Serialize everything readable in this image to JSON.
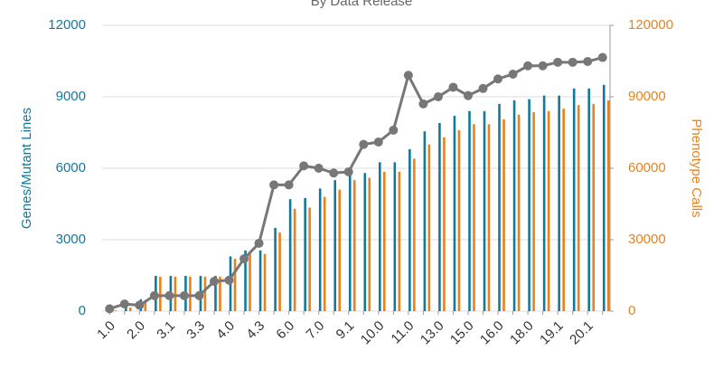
{
  "chart_data": {
    "type": "bar",
    "title": "By Data Release",
    "ylabel": "Genes/Mutant Lines",
    "y2label": "Phenotype Calls",
    "categories": [
      "1.0",
      null,
      "2.0",
      null,
      "3.1",
      null,
      "3.3",
      null,
      "4.0",
      null,
      "4.3",
      null,
      "6.0",
      null,
      "7.0",
      null,
      "9.1",
      null,
      "10.0",
      null,
      "11.0",
      null,
      "13.0",
      null,
      "15.0",
      null,
      "16.0",
      null,
      "18.0",
      null,
      "19.1",
      null,
      "20.1",
      null
    ],
    "series": [
      {
        "color": "#11799b",
        "values": [
          50,
          200,
          500,
          1480,
          1480,
          1480,
          1480,
          1480,
          2300,
          2550,
          2550,
          3500,
          4700,
          4750,
          5150,
          5500,
          5700,
          5800,
          6250,
          6250,
          6800,
          7550,
          7900,
          8200,
          8400,
          8400,
          8700,
          8850,
          8900,
          9050,
          9050,
          9350,
          9350,
          9500
        ]
      },
      {
        "color": "#e8821e",
        "values": [
          30,
          150,
          450,
          1450,
          1450,
          1450,
          1450,
          1450,
          2200,
          2400,
          2400,
          3300,
          4300,
          4350,
          4800,
          5100,
          5500,
          5600,
          5850,
          5850,
          6400,
          7000,
          7300,
          7600,
          7850,
          7850,
          8050,
          8250,
          8350,
          8400,
          8500,
          8650,
          8700,
          8850
        ]
      },
      {
        "color": "#777777",
        "axis": "y2",
        "kind": "line",
        "values": [
          1000,
          3000,
          2500,
          6500,
          6500,
          6500,
          6500,
          12500,
          13000,
          22000,
          28500,
          53000,
          53000,
          61000,
          60000,
          58000,
          58500,
          70000,
          71000,
          76000,
          99000,
          87000,
          90000,
          94000,
          90500,
          93500,
          97500,
          99500,
          103000,
          103000,
          104500,
          104500,
          104800,
          106500
        ]
      }
    ],
    "ylim": [
      0,
      12000
    ],
    "yticks": [
      0,
      3000,
      6000,
      9000,
      12000
    ],
    "y2lim": [
      0,
      120000
    ],
    "y2ticks": [
      0,
      30000,
      60000,
      90000,
      120000
    ],
    "grid": true
  }
}
